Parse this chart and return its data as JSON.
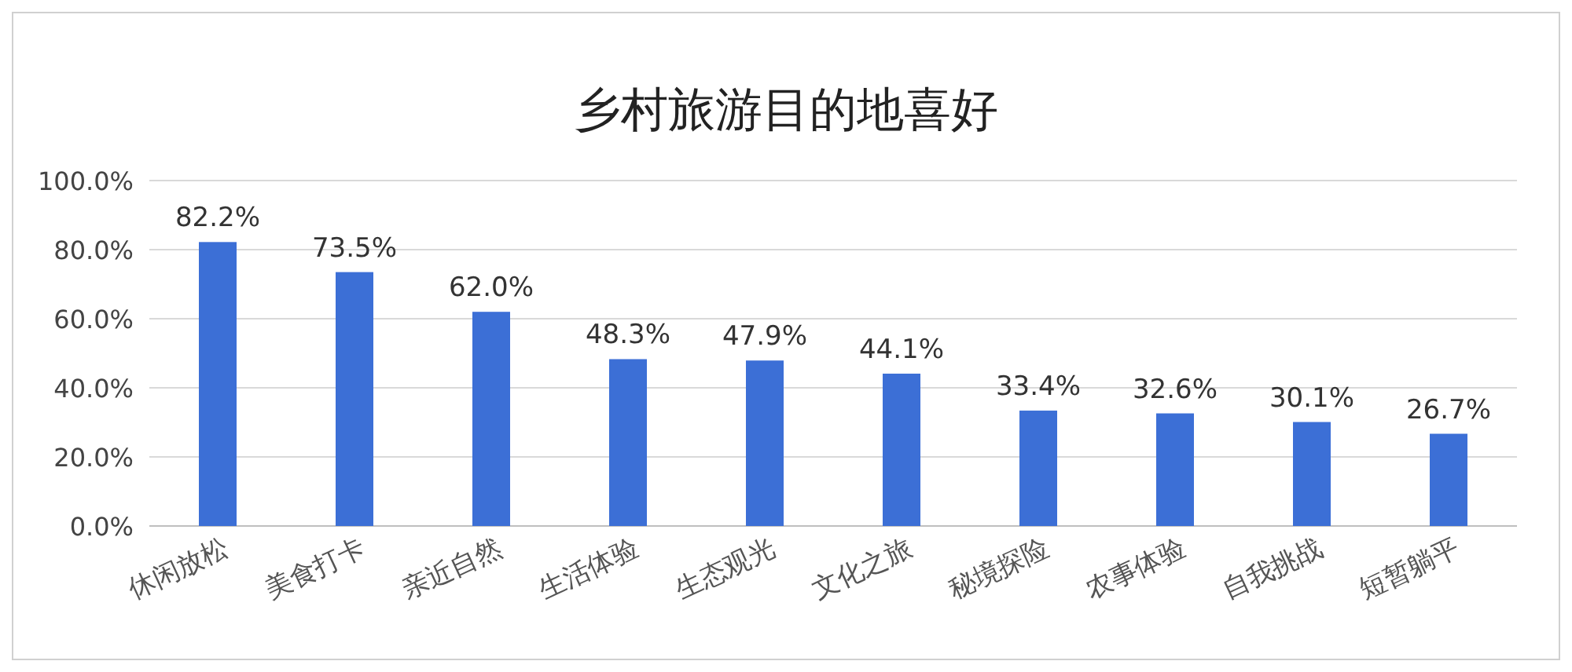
{
  "chart_data": {
    "type": "bar",
    "title": "乡村旅游目的地喜好",
    "categories": [
      "休闲放松",
      "美食打卡",
      "亲近自然",
      "生活体验",
      "生态观光",
      "文化之旅",
      "秘境探险",
      "农事体验",
      "自我挑战",
      "短暂躺平"
    ],
    "values": [
      82.2,
      73.5,
      62.0,
      48.3,
      47.9,
      44.1,
      33.4,
      32.6,
      30.1,
      26.7
    ],
    "value_labels": [
      "82.2%",
      "73.5%",
      "62.0%",
      "48.3%",
      "47.9%",
      "44.1%",
      "33.4%",
      "32.6%",
      "30.1%",
      "26.7%"
    ],
    "color": "#3c6fd6",
    "ylim": [
      0,
      100
    ],
    "yticks": [
      {
        "value": 0,
        "label": "0.0%"
      },
      {
        "value": 20,
        "label": "20.0%"
      },
      {
        "value": 40,
        "label": "40.0%"
      },
      {
        "value": 60,
        "label": "60.0%"
      },
      {
        "value": 80,
        "label": "80.0%"
      },
      {
        "value": 100,
        "label": "100.0%"
      }
    ],
    "grid": "y"
  }
}
